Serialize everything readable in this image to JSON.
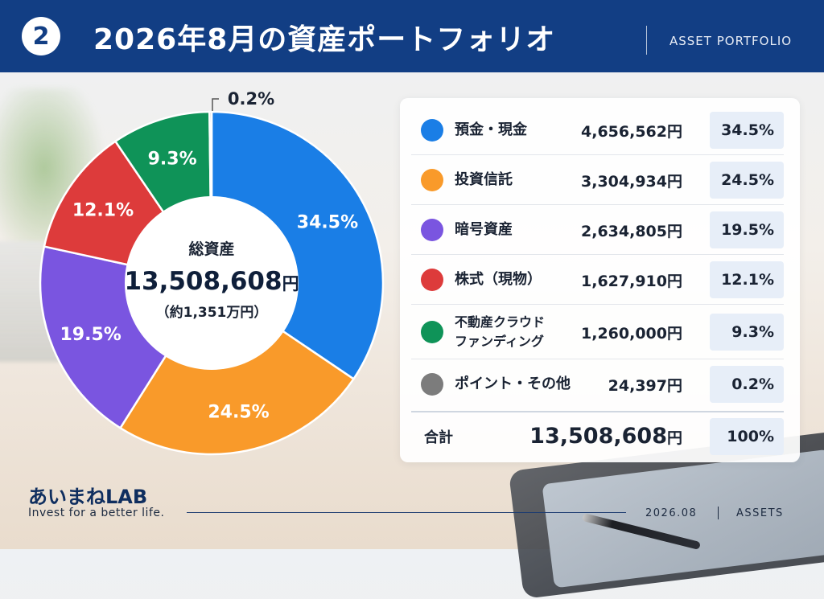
{
  "header": {
    "step_number": "2",
    "title": "2026年8月の資産ポートフォリオ",
    "subtitle": "ASSET PORTFOLIO"
  },
  "center": {
    "label": "総資産",
    "total": "13,508,608",
    "total_unit": "円",
    "approx": "（約1,351万円）"
  },
  "table": {
    "rows": [
      {
        "label": "預金・現金",
        "amount": "4,656,562円",
        "pct": "34.5%",
        "color": "#1a7ee6"
      },
      {
        "label": "投資信託",
        "amount": "3,304,934円",
        "pct": "24.5%",
        "color": "#f99a2a"
      },
      {
        "label": "暗号資産",
        "amount": "2,634,805円",
        "pct": "19.5%",
        "color": "#7a55e0"
      },
      {
        "label": "株式（現物）",
        "amount": "1,627,910円",
        "pct": "12.1%",
        "color": "#dd3b3b"
      },
      {
        "label": "不動産クラウドファンディング",
        "amount": "1,260,000円",
        "pct": "9.3%",
        "color": "#0f9358"
      },
      {
        "label": "ポイント・その他",
        "amount": "24,397円",
        "pct": "0.2%",
        "color": "#7c7c7c"
      }
    ],
    "total_label": "合計",
    "total_amount": "13,508,608",
    "total_unit": "円",
    "total_pct": "100%"
  },
  "footer": {
    "brand": "あいまねLAB",
    "tagline": "Invest for a better life.",
    "date": "2026.08",
    "tag": "ASSETS"
  },
  "chart_data": {
    "type": "pie",
    "title": "2026年8月の資産ポートフォリオ",
    "categories": [
      "預金・現金",
      "投資信託",
      "暗号資産",
      "株式（現物）",
      "不動産クラウドファンディング",
      "ポイント・その他"
    ],
    "values": [
      34.5,
      24.5,
      19.5,
      12.1,
      9.3,
      0.2
    ],
    "amounts_yen": [
      4656562,
      3304934,
      2634805,
      1627910,
      1260000,
      24397
    ],
    "slice_labels": [
      "34.5%",
      "24.5%",
      "19.5%",
      "12.1%",
      "9.3%",
      "0.2%"
    ],
    "colors": [
      "#1a7ee6",
      "#f99a2a",
      "#7a55e0",
      "#dd3b3b",
      "#0f9358",
      "#7c7c7c"
    ],
    "donut": true,
    "legend": "right"
  }
}
